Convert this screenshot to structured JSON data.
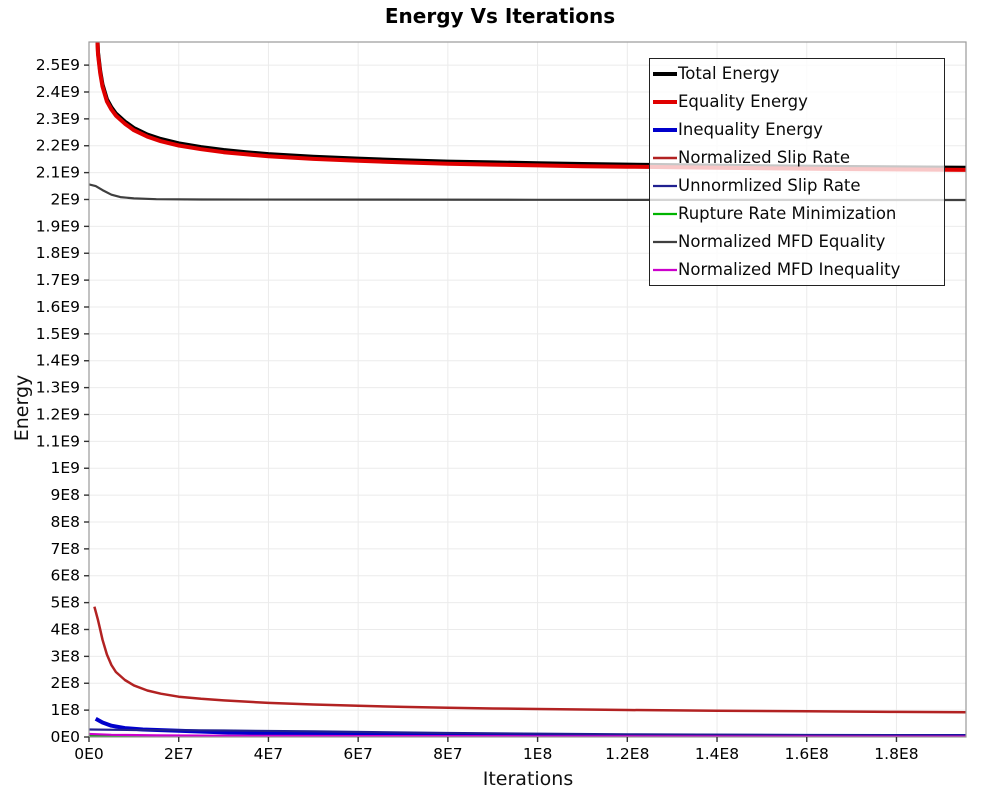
{
  "chart_data": {
    "type": "line",
    "title": "Energy Vs Iterations",
    "xlabel": "Iterations",
    "ylabel": "Energy",
    "xlim": [
      0,
      195500000.0
    ],
    "ylim": [
      0,
      2586000000.0
    ],
    "grid": true,
    "legend_position": "upper right",
    "x_ticks": [
      {
        "value": 0,
        "label": "0E0"
      },
      {
        "value": 20000000.0,
        "label": "2E7"
      },
      {
        "value": 40000000.0,
        "label": "4E7"
      },
      {
        "value": 60000000.0,
        "label": "6E7"
      },
      {
        "value": 80000000.0,
        "label": "8E7"
      },
      {
        "value": 100000000.0,
        "label": "1E8"
      },
      {
        "value": 120000000.0,
        "label": "1.2E8"
      },
      {
        "value": 140000000.0,
        "label": "1.4E8"
      },
      {
        "value": 160000000.0,
        "label": "1.6E8"
      },
      {
        "value": 180000000.0,
        "label": "1.8E8"
      }
    ],
    "y_ticks": [
      {
        "value": 0,
        "label": "0E0"
      },
      {
        "value": 100000000.0,
        "label": "1E8"
      },
      {
        "value": 200000000.0,
        "label": "2E8"
      },
      {
        "value": 300000000.0,
        "label": "3E8"
      },
      {
        "value": 400000000.0,
        "label": "4E8"
      },
      {
        "value": 500000000.0,
        "label": "5E8"
      },
      {
        "value": 600000000.0,
        "label": "6E8"
      },
      {
        "value": 700000000.0,
        "label": "7E8"
      },
      {
        "value": 800000000.0,
        "label": "8E8"
      },
      {
        "value": 900000000.0,
        "label": "9E8"
      },
      {
        "value": 1000000000.0,
        "label": "1E9"
      },
      {
        "value": 1100000000.0,
        "label": "1.1E9"
      },
      {
        "value": 1200000000.0,
        "label": "1.2E9"
      },
      {
        "value": 1300000000.0,
        "label": "1.3E9"
      },
      {
        "value": 1400000000.0,
        "label": "1.4E9"
      },
      {
        "value": 1500000000.0,
        "label": "1.5E9"
      },
      {
        "value": 1600000000.0,
        "label": "1.6E9"
      },
      {
        "value": 1700000000.0,
        "label": "1.7E9"
      },
      {
        "value": 1800000000.0,
        "label": "1.8E9"
      },
      {
        "value": 1900000000.0,
        "label": "1.9E9"
      },
      {
        "value": 2000000000.0,
        "label": "2E9"
      },
      {
        "value": 2100000000.0,
        "label": "2.1E9"
      },
      {
        "value": 2200000000.0,
        "label": "2.2E9"
      },
      {
        "value": 2300000000.0,
        "label": "2.3E9"
      },
      {
        "value": 2400000000.0,
        "label": "2.4E9"
      },
      {
        "value": 2500000000.0,
        "label": "2.5E9"
      }
    ],
    "series": [
      {
        "name": "Total Energy",
        "color": "#000000",
        "width": 4,
        "points": [
          [
            1800000.0,
            2628000000.0
          ],
          [
            2000000.0,
            2548000000.0
          ],
          [
            2500000.0,
            2478000000.0
          ],
          [
            3000000.0,
            2428000000.0
          ],
          [
            4000000.0,
            2373000000.0
          ],
          [
            5000000.0,
            2343000000.0
          ],
          [
            6000000.0,
            2320000000.0
          ],
          [
            8000000.0,
            2290000000.0
          ],
          [
            10000000.0,
            2266000000.0
          ],
          [
            13000000.0,
            2242000000.0
          ],
          [
            16000000.0,
            2225000000.0
          ],
          [
            20000000.0,
            2209000000.0
          ],
          [
            25000000.0,
            2195000000.0
          ],
          [
            30000000.0,
            2184000000.0
          ],
          [
            35000000.0,
            2176000000.0
          ],
          [
            40000000.0,
            2169000000.0
          ],
          [
            50000000.0,
            2159000000.0
          ],
          [
            60000000.0,
            2152000000.0
          ],
          [
            70000000.0,
            2146000000.0
          ],
          [
            80000000.0,
            2141000000.0
          ],
          [
            90000000.0,
            2138000000.0
          ],
          [
            100000000.0,
            2135000000.0
          ],
          [
            110000000.0,
            2132000000.0
          ],
          [
            120000000.0,
            2130000000.0
          ],
          [
            135000000.0,
            2127000000.0
          ],
          [
            150000000.0,
            2124000000.0
          ],
          [
            170000000.0,
            2121000000.0
          ],
          [
            195500000.0,
            2118000000.0
          ]
        ]
      },
      {
        "name": "Equality Energy",
        "color": "#e00000",
        "width": 4,
        "points": [
          [
            1800000.0,
            2620000000.0
          ],
          [
            2000000.0,
            2540000000.0
          ],
          [
            2500000.0,
            2470000000.0
          ],
          [
            3000000.0,
            2420000000.0
          ],
          [
            4000000.0,
            2365000000.0
          ],
          [
            5000000.0,
            2335000000.0
          ],
          [
            6000000.0,
            2312000000.0
          ],
          [
            8000000.0,
            2282000000.0
          ],
          [
            10000000.0,
            2258000000.0
          ],
          [
            13000000.0,
            2234000000.0
          ],
          [
            16000000.0,
            2217000000.0
          ],
          [
            20000000.0,
            2201000000.0
          ],
          [
            25000000.0,
            2187000000.0
          ],
          [
            30000000.0,
            2176000000.0
          ],
          [
            35000000.0,
            2168000000.0
          ],
          [
            40000000.0,
            2161000000.0
          ],
          [
            50000000.0,
            2151000000.0
          ],
          [
            60000000.0,
            2144000000.0
          ],
          [
            70000000.0,
            2138000000.0
          ],
          [
            80000000.0,
            2133000000.0
          ],
          [
            90000000.0,
            2130000000.0
          ],
          [
            100000000.0,
            2127000000.0
          ],
          [
            110000000.0,
            2124000000.0
          ],
          [
            120000000.0,
            2122000000.0
          ],
          [
            135000000.0,
            2119000000.0
          ],
          [
            150000000.0,
            2116000000.0
          ],
          [
            170000000.0,
            2113000000.0
          ],
          [
            195500000.0,
            2110000000.0
          ]
        ]
      },
      {
        "name": "Inequality Energy",
        "color": "#0000cc",
        "width": 4,
        "points": [
          [
            1500000.0,
            68000000.0
          ],
          [
            3000000.0,
            54000000.0
          ],
          [
            5000000.0,
            42000000.0
          ],
          [
            8000000.0,
            33000000.0
          ],
          [
            12000000.0,
            28000000.0
          ],
          [
            20000000.0,
            23000000.0
          ],
          [
            30000000.0,
            17000000.0
          ],
          [
            40000000.0,
            13500000.0
          ],
          [
            50000000.0,
            11000000.0
          ],
          [
            65000000.0,
            8500000.0
          ],
          [
            80000000.0,
            7000000.0
          ],
          [
            100000000.0,
            5500000.0
          ],
          [
            130000000.0,
            4500000.0
          ],
          [
            160000000.0,
            4000000.0
          ],
          [
            195500000.0,
            3700000.0
          ]
        ]
      },
      {
        "name": "Normalized Slip Rate",
        "color": "#b22222",
        "width": 2.5,
        "points": [
          [
            1200000.0,
            485000000.0
          ],
          [
            2000000.0,
            435000000.0
          ],
          [
            2500000.0,
            400000000.0
          ],
          [
            3000000.0,
            362000000.0
          ],
          [
            4000000.0,
            307000000.0
          ],
          [
            5000000.0,
            268000000.0
          ],
          [
            6000000.0,
            242000000.0
          ],
          [
            8000000.0,
            212000000.0
          ],
          [
            10000000.0,
            192000000.0
          ],
          [
            13000000.0,
            173000000.0
          ],
          [
            16000000.0,
            161000000.0
          ],
          [
            20000000.0,
            150000000.0
          ],
          [
            25000000.0,
            142000000.0
          ],
          [
            30000000.0,
            136000000.0
          ],
          [
            40000000.0,
            127000000.0
          ],
          [
            50000000.0,
            121000000.0
          ],
          [
            60000000.0,
            116000000.0
          ],
          [
            70000000.0,
            112000000.0
          ],
          [
            80000000.0,
            109000000.0
          ],
          [
            90000000.0,
            106000000.0
          ],
          [
            100000000.0,
            104000000.0
          ],
          [
            120000000.0,
            100500000.0
          ],
          [
            140000000.0,
            98000000.0
          ],
          [
            160000000.0,
            95500000.0
          ],
          [
            180000000.0,
            93500000.0
          ],
          [
            195500000.0,
            92000000.0
          ]
        ]
      },
      {
        "name": "Unnormlized Slip Rate",
        "color": "#202090",
        "width": 2.2,
        "points": [
          [
            0,
            28000000.0
          ],
          [
            10000000.0,
            26000000.0
          ],
          [
            30000000.0,
            24000000.0
          ],
          [
            50000000.0,
            21000000.0
          ],
          [
            80000000.0,
            15000000.0
          ],
          [
            120000000.0,
            10000000.0
          ],
          [
            160000000.0,
            7000000.0
          ],
          [
            195500000.0,
            6000000.0
          ]
        ]
      },
      {
        "name": "Rupture Rate Minimization",
        "color": "#00b400",
        "width": 2.2,
        "points": [
          [
            0,
            5000000.0
          ],
          [
            4000000.0,
            2500000.0
          ],
          [
            10000000.0,
            1500000.0
          ],
          [
            195500000.0,
            1000000.0
          ]
        ]
      },
      {
        "name": "Normalized MFD Equality",
        "color": "#3f3f3f",
        "width": 2.2,
        "points": [
          [
            0,
            2056000000.0
          ],
          [
            1500000.0,
            2050000000.0
          ],
          [
            3000000.0,
            2035000000.0
          ],
          [
            5000000.0,
            2018000000.0
          ],
          [
            7000000.0,
            2009000000.0
          ],
          [
            10000000.0,
            2004000000.0
          ],
          [
            15000000.0,
            2001000000.0
          ],
          [
            25000000.0,
            2000000000.0
          ],
          [
            100000000.0,
            1999000000.0
          ],
          [
            195500000.0,
            1998000000.0
          ]
        ]
      },
      {
        "name": "Normalized MFD Inequality",
        "color": "#cc00cc",
        "width": 2.2,
        "points": [
          [
            0,
            11000000.0
          ],
          [
            5000000.0,
            8000000.0
          ],
          [
            15000000.0,
            6000000.0
          ],
          [
            30000000.0,
            5000000.0
          ],
          [
            60000000.0,
            3500000.0
          ],
          [
            100000000.0,
            2500000.0
          ],
          [
            150000000.0,
            1800000.0
          ],
          [
            195500000.0,
            1500000.0
          ]
        ]
      }
    ]
  },
  "plot_style": {
    "grid_color": "#ebebeb",
    "border_color": "#9a9a9a",
    "tick_color": "#333333",
    "tick_label_color": "#000000",
    "legend_border_color": "#222222"
  }
}
